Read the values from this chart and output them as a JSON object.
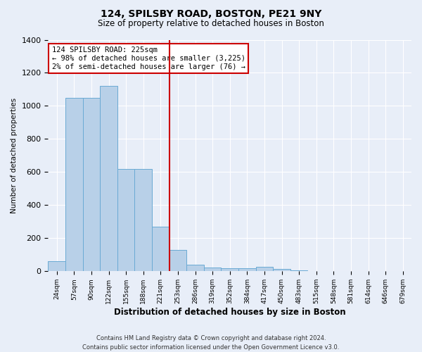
{
  "title": "124, SPILSBY ROAD, BOSTON, PE21 9NY",
  "subtitle": "Size of property relative to detached houses in Boston",
  "xlabel": "Distribution of detached houses by size in Boston",
  "ylabel": "Number of detached properties",
  "footer_line1": "Contains HM Land Registry data © Crown copyright and database right 2024.",
  "footer_line2": "Contains public sector information licensed under the Open Government Licence v3.0.",
  "annotation_line1": "124 SPILSBY ROAD: 225sqm",
  "annotation_line2": "← 98% of detached houses are smaller (3,225)",
  "annotation_line3": "2% of semi-detached houses are larger (76) →",
  "bin_labels": [
    "24sqm",
    "57sqm",
    "90sqm",
    "122sqm",
    "155sqm",
    "188sqm",
    "221sqm",
    "253sqm",
    "286sqm",
    "319sqm",
    "352sqm",
    "384sqm",
    "417sqm",
    "450sqm",
    "483sqm",
    "515sqm",
    "548sqm",
    "581sqm",
    "614sqm",
    "646sqm",
    "679sqm"
  ],
  "bar_heights": [
    60,
    1050,
    1050,
    1120,
    620,
    620,
    270,
    130,
    38,
    22,
    18,
    20,
    25,
    13,
    5,
    3,
    2,
    2,
    1,
    1,
    1
  ],
  "bar_color": "#b8d0e8",
  "bar_edge_color": "#6aaad4",
  "vline_color": "#cc0000",
  "vline_position": 6.5,
  "annotation_box_color": "#cc0000",
  "background_color": "#e8eef8",
  "grid_color": "#ffffff",
  "ylim": [
    0,
    1400
  ],
  "yticks": [
    0,
    200,
    400,
    600,
    800,
    1000,
    1200,
    1400
  ]
}
